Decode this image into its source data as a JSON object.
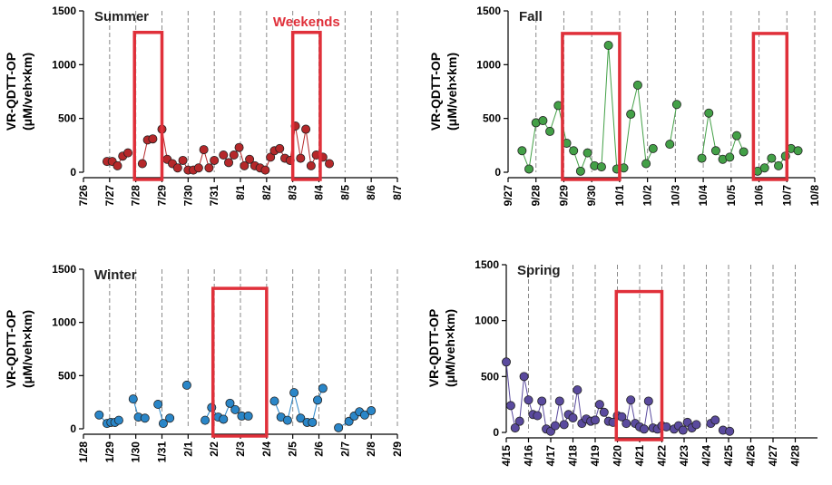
{
  "chart_data": [
    {
      "type": "line",
      "title": "Summer",
      "ylabel": "VR-QDTT-OP",
      "ylabel_unit": "(μM/veh×km)",
      "ylim": [
        0,
        1500
      ],
      "yticks": [
        0,
        500,
        1000,
        1500
      ],
      "xlim": [
        0,
        12
      ],
      "xtick_labels": [
        "7/26",
        "7/27",
        "7/28",
        "7/29",
        "7/30",
        "7/31",
        "8/1",
        "8/2",
        "8/3",
        "8/4",
        "8/5",
        "8/6",
        "8/7"
      ],
      "color": "#b5282a",
      "weekend_boxes": [
        [
          1.95,
          3.0
        ],
        [
          8.0,
          9.05
        ]
      ],
      "box_top": 1300,
      "annotation": "Weekends",
      "series": [
        {
          "x": [
            0.9,
            1.1,
            1.3,
            1.5,
            1.7
          ],
          "y": [
            100,
            100,
            60,
            150,
            180
          ]
        },
        {
          "x": [
            2.25,
            2.45,
            2.65
          ],
          "y": [
            80,
            300,
            310
          ]
        },
        {
          "x": [
            3.0,
            3.2,
            3.4,
            3.6,
            3.8,
            4.0,
            4.2
          ],
          "y": [
            400,
            120,
            80,
            40,
            110,
            20,
            20
          ]
        },
        {
          "x": [
            4.4,
            4.6,
            4.8,
            5.0
          ],
          "y": [
            40,
            210,
            40,
            110
          ]
        },
        {
          "x": [
            5.35,
            5.55,
            5.75,
            5.95,
            6.15,
            6.35,
            6.55,
            6.75,
            6.95,
            7.15
          ],
          "y": [
            160,
            90,
            160,
            230,
            60,
            120,
            60,
            40,
            20,
            140
          ]
        },
        {
          "x": [
            7.3,
            7.5,
            7.7,
            7.9,
            8.1,
            8.3,
            8.5,
            8.7,
            8.9
          ],
          "y": [
            200,
            220,
            130,
            110,
            430,
            130,
            400,
            60,
            160
          ]
        },
        {
          "x": [
            9.15,
            9.4
          ],
          "y": [
            140,
            80
          ]
        }
      ]
    },
    {
      "type": "line",
      "title": "Fall",
      "ylabel": "VR-QDTT-OP",
      "ylabel_unit": "(μM/veh×km)",
      "ylim": [
        0,
        1500
      ],
      "yticks": [
        0,
        500,
        1000,
        1500
      ],
      "xlim": [
        0,
        11
      ],
      "xtick_labels": [
        "9/27",
        "9/28",
        "9/29",
        "9/30",
        "10/1",
        "10/2",
        "10/3",
        "10/4",
        "10/5",
        "10/6",
        "10/7",
        "10/8"
      ],
      "color": "#43a047",
      "weekend_boxes": [
        [
          1.95,
          4.0
        ],
        [
          8.8,
          10.0
        ]
      ],
      "box_top": 1290,
      "annotation": "",
      "series": [
        {
          "x": [
            0.5,
            0.75,
            1.0,
            1.25,
            1.5,
            1.8,
            2.1,
            2.35,
            2.6,
            2.85,
            3.1,
            3.35,
            3.6,
            3.9,
            4.15,
            4.4,
            4.65,
            4.95,
            5.2
          ],
          "y": [
            200,
            30,
            460,
            480,
            380,
            620,
            270,
            200,
            10,
            180,
            60,
            50,
            1180,
            30,
            40,
            540,
            810,
            80,
            220
          ]
        },
        {
          "x": [
            5.8,
            6.05
          ],
          "y": [
            260,
            630
          ]
        },
        {
          "x": [
            6.95,
            7.2,
            7.45,
            7.7,
            7.95,
            8.2,
            8.45
          ],
          "y": [
            130,
            550,
            200,
            120,
            140,
            340,
            190
          ]
        },
        {
          "x": [
            8.95,
            9.2,
            9.45,
            9.7,
            9.95
          ],
          "y": [
            10,
            40,
            130,
            60,
            150
          ]
        },
        {
          "x": [
            10.15,
            10.4
          ],
          "y": [
            220,
            200
          ]
        }
      ]
    },
    {
      "type": "line",
      "title": "Winter",
      "ylabel": "VR-QDTT-OP",
      "ylabel_unit": "(μM/veh×km)",
      "ylim": [
        0,
        1500
      ],
      "yticks": [
        0,
        500,
        1000,
        1500
      ],
      "xlim": [
        0,
        12
      ],
      "xtick_labels": [
        "1/28",
        "1/29",
        "1/30",
        "1/31",
        "2/1",
        "2/2",
        "2/3",
        "2/4",
        "2/5",
        "2/6",
        "2/7",
        "2/8",
        "2/9"
      ],
      "color": "#2a86c8",
      "weekend_boxes": [
        [
          4.95,
          7.0
        ]
      ],
      "box_top": 1320,
      "annotation": "",
      "series": [
        {
          "x": [
            0.6,
            0.9,
            1.05,
            1.2,
            1.35
          ],
          "y": [
            130,
            50,
            60,
            60,
            80
          ]
        },
        {
          "x": [
            1.9,
            2.1,
            2.35
          ],
          "y": [
            280,
            110,
            100
          ]
        },
        {
          "x": [
            2.85,
            3.05,
            3.3
          ],
          "y": [
            230,
            50,
            100
          ]
        },
        {
          "x": [
            3.95
          ],
          "y": [
            410
          ]
        },
        {
          "x": [
            4.65,
            4.9,
            5.15,
            5.35,
            5.6,
            5.8,
            6.05,
            6.3
          ],
          "y": [
            80,
            200,
            110,
            90,
            240,
            180,
            120,
            120
          ]
        },
        {
          "x": [
            7.3,
            7.55,
            7.8,
            8.05,
            8.3,
            8.55,
            8.75,
            8.95,
            9.15
          ],
          "y": [
            260,
            110,
            80,
            340,
            100,
            60,
            60,
            270,
            380
          ]
        },
        {
          "x": [
            9.75,
            10.15,
            10.35,
            10.55,
            10.75,
            11.0
          ],
          "y": [
            10,
            70,
            120,
            160,
            130,
            170
          ]
        }
      ]
    },
    {
      "type": "line",
      "title": "Spring",
      "ylabel": "VR-QDTT-OP",
      "ylabel_unit": "(μM/veh×km)",
      "ylim": [
        0,
        1500
      ],
      "yticks": [
        0,
        500,
        1000,
        1500
      ],
      "xlim": [
        0,
        14
      ],
      "xtick_labels": [
        "4/15",
        "4/16",
        "4/17",
        "4/18",
        "4/19",
        "4/20",
        "4/21",
        "4/22",
        "4/23",
        "4/24",
        "4/25",
        "4/26",
        "4/27",
        "4/28"
      ],
      "color": "#5a4a9e",
      "weekend_boxes": [
        [
          4.95,
          7.0
        ]
      ],
      "box_top": 1260,
      "annotation": "",
      "series": [
        {
          "x": [
            0.0,
            0.2,
            0.4,
            0.6,
            0.8,
            1.0,
            1.2,
            1.4,
            1.6,
            1.8,
            2.0,
            2.2,
            2.4,
            2.6,
            2.8,
            3.0,
            3.2,
            3.4,
            3.6,
            3.8,
            4.0,
            4.2,
            4.4,
            4.6,
            4.8,
            5.0,
            5.2,
            5.4,
            5.6,
            5.8,
            6.0,
            6.2,
            6.4,
            6.6,
            6.8,
            7.0,
            7.2
          ],
          "y": [
            630,
            240,
            40,
            100,
            500,
            290,
            160,
            150,
            280,
            30,
            10,
            60,
            280,
            70,
            160,
            130,
            380,
            80,
            120,
            100,
            110,
            250,
            180,
            100,
            90,
            150,
            140,
            80,
            290,
            80,
            50,
            30,
            280,
            40,
            30,
            60,
            50
          ]
        },
        {
          "x": [
            7.55,
            7.75,
            7.95,
            8.15,
            8.35,
            8.55
          ],
          "y": [
            30,
            60,
            20,
            90,
            40,
            70
          ]
        },
        {
          "x": [
            9.2,
            9.4
          ],
          "y": [
            80,
            110
          ]
        },
        {
          "x": [
            9.75,
            10.05
          ],
          "y": [
            20,
            10
          ]
        }
      ]
    }
  ]
}
